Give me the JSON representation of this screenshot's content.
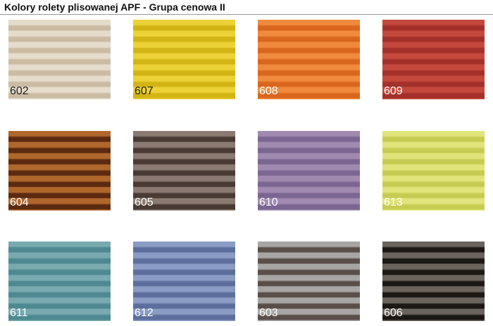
{
  "title": "Kolory rolety plisowanej APF - Grupa cenowa II",
  "swatches": [
    {
      "code": "602",
      "light": "#e6dccb",
      "dark": "#cbbba3",
      "label": "#222222"
    },
    {
      "code": "607",
      "light": "#ecd236",
      "dark": "#d2b414",
      "label": "#222222"
    },
    {
      "code": "608",
      "light": "#f08a3c",
      "dark": "#d8671d",
      "label": "#ffffff"
    },
    {
      "code": "609",
      "light": "#c4483c",
      "dark": "#a3302a",
      "label": "#ffffff"
    },
    {
      "code": "604",
      "light": "#b0672c",
      "dark": "#5c2a10",
      "label": "#ffffff"
    },
    {
      "code": "605",
      "light": "#8a7a72",
      "dark": "#4a3a34",
      "label": "#ffffff"
    },
    {
      "code": "610",
      "light": "#a08ab0",
      "dark": "#7a6690",
      "label": "#ffffff"
    },
    {
      "code": "613",
      "light": "#e0e47a",
      "dark": "#c6cc52",
      "label": "#ffffff"
    },
    {
      "code": "611",
      "light": "#78aab0",
      "dark": "#4e8890",
      "label": "#ffffff"
    },
    {
      "code": "612",
      "light": "#8a9cc4",
      "dark": "#5c6e9c",
      "label": "#ffffff"
    },
    {
      "code": "603",
      "light": "#a8a6a4",
      "dark": "#5a4e48",
      "label": "#ffffff"
    },
    {
      "code": "606",
      "light": "#6a645c",
      "dark": "#1c1814",
      "label": "#ffffff"
    }
  ]
}
